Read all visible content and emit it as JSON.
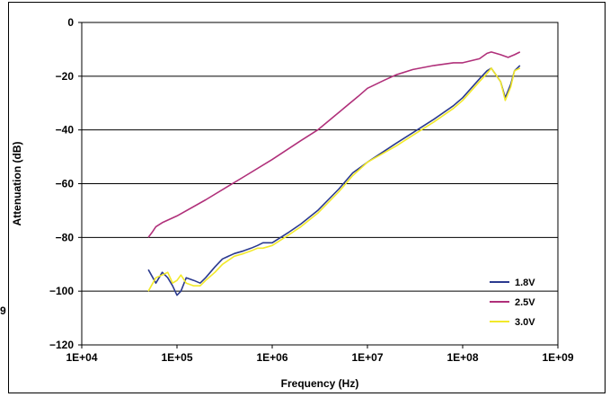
{
  "stray_label": "9",
  "chart_data": {
    "type": "line",
    "title": "",
    "xlabel": "Frequency (Hz)",
    "ylabel": "Attenuation (dB)",
    "x_scale": "log",
    "xlim": [
      10000,
      1000000000
    ],
    "ylim": [
      -120,
      0
    ],
    "x_ticks": [
      "1E+04",
      "1E+05",
      "1E+06",
      "1E+07",
      "1E+08",
      "1E+09"
    ],
    "y_ticks": [
      "0",
      "−20",
      "−40",
      "−60",
      "−80",
      "−100",
      "−120"
    ],
    "grid": "horizontal",
    "legend_position": "bottom-right",
    "series": [
      {
        "name": "1.8V",
        "color": "#2b3a8f",
        "x": [
          50000,
          60000,
          70000,
          80000,
          90000,
          100000,
          110000,
          125000,
          150000,
          175000,
          200000,
          250000,
          300000,
          400000,
          500000,
          600000,
          700000,
          800000,
          1000000,
          1500000,
          2000000,
          3000000,
          5000000,
          7000000,
          10000000,
          20000000,
          30000000,
          50000000,
          80000000,
          100000000,
          150000000,
          180000000,
          200000000,
          250000000,
          280000000,
          320000000,
          350000000,
          400000000
        ],
        "y": [
          -92,
          -97,
          -93,
          -95,
          -98,
          -101.5,
          -100,
          -95,
          -96,
          -97,
          -95,
          -91,
          -88,
          -86,
          -85,
          -84,
          -83,
          -82,
          -82,
          -78,
          -75,
          -70,
          -62,
          -56,
          -52,
          -45,
          -41,
          -36,
          -31,
          -28,
          -21,
          -18,
          -17,
          -22,
          -28,
          -23,
          -18,
          -16
        ]
      },
      {
        "name": "2.5V",
        "color": "#b0307a",
        "x": [
          50000,
          55000,
          60000,
          70000,
          100000,
          200000,
          500000,
          1000000,
          2000000,
          3000000,
          5000000,
          8000000,
          10000000,
          15000000,
          20000000,
          30000000,
          50000000,
          80000000,
          100000000,
          150000000,
          180000000,
          200000000,
          250000000,
          300000000,
          350000000,
          400000000
        ],
        "y": [
          -80,
          -78,
          -76,
          -74.5,
          -72,
          -66,
          -57.5,
          -51,
          -44,
          -40,
          -33.5,
          -27.5,
          -24.5,
          -21.5,
          -19.5,
          -17.5,
          -16,
          -15,
          -15,
          -13.5,
          -11.5,
          -11,
          -12,
          -13,
          -12,
          -11
        ]
      },
      {
        "name": "3.0V",
        "color": "#f2e92a",
        "x": [
          50000,
          60000,
          70000,
          80000,
          90000,
          100000,
          110000,
          125000,
          150000,
          175000,
          200000,
          250000,
          300000,
          400000,
          500000,
          600000,
          700000,
          800000,
          1000000,
          1500000,
          2000000,
          3000000,
          5000000,
          7000000,
          10000000,
          20000000,
          30000000,
          50000000,
          80000000,
          100000000,
          150000000,
          180000000,
          200000000,
          250000000,
          280000000,
          320000000,
          350000000,
          400000000
        ],
        "y": [
          -100,
          -95,
          -94,
          -93,
          -97,
          -96,
          -94,
          -97,
          -98,
          -98,
          -96,
          -93,
          -90,
          -87,
          -86,
          -85,
          -84,
          -84,
          -83,
          -79,
          -76,
          -71,
          -63,
          -57,
          -52,
          -46,
          -42,
          -37,
          -32,
          -29,
          -22,
          -19,
          -17,
          -22,
          -29,
          -24,
          -18,
          -17
        ]
      }
    ]
  }
}
